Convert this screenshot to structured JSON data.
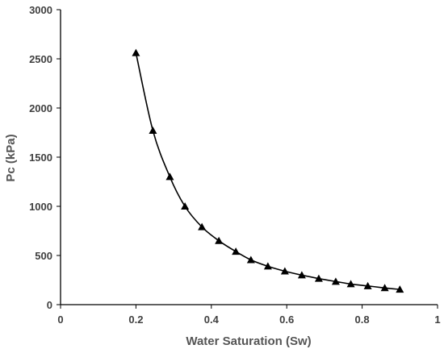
{
  "chart_data": {
    "type": "line",
    "title": "",
    "xlabel": "Water Saturation (Sw)",
    "ylabel": "Pc  (kPa)",
    "xlim": [
      0,
      1
    ],
    "ylim": [
      0,
      3000
    ],
    "x_ticks": [
      0,
      0.2,
      0.4,
      0.6,
      0.8,
      1
    ],
    "x_tick_labels": [
      "0",
      "0.2",
      "0.4",
      "0.6",
      "0.8",
      "1"
    ],
    "y_ticks": [
      0,
      500,
      1000,
      1500,
      2000,
      2500,
      3000
    ],
    "y_tick_labels": [
      "0",
      "500",
      "1000",
      "1500",
      "2000",
      "2500",
      "3000"
    ],
    "grid": false,
    "legend": "none",
    "series": [
      {
        "marker": "triangle",
        "color": "#000000",
        "x": [
          0.2,
          0.245,
          0.29,
          0.33,
          0.375,
          0.42,
          0.465,
          0.505,
          0.55,
          0.595,
          0.64,
          0.685,
          0.73,
          0.77,
          0.815,
          0.86,
          0.9
        ],
        "y": [
          2560,
          1770,
          1300,
          1000,
          790,
          650,
          540,
          455,
          390,
          340,
          300,
          265,
          235,
          210,
          190,
          170,
          155
        ]
      }
    ]
  }
}
